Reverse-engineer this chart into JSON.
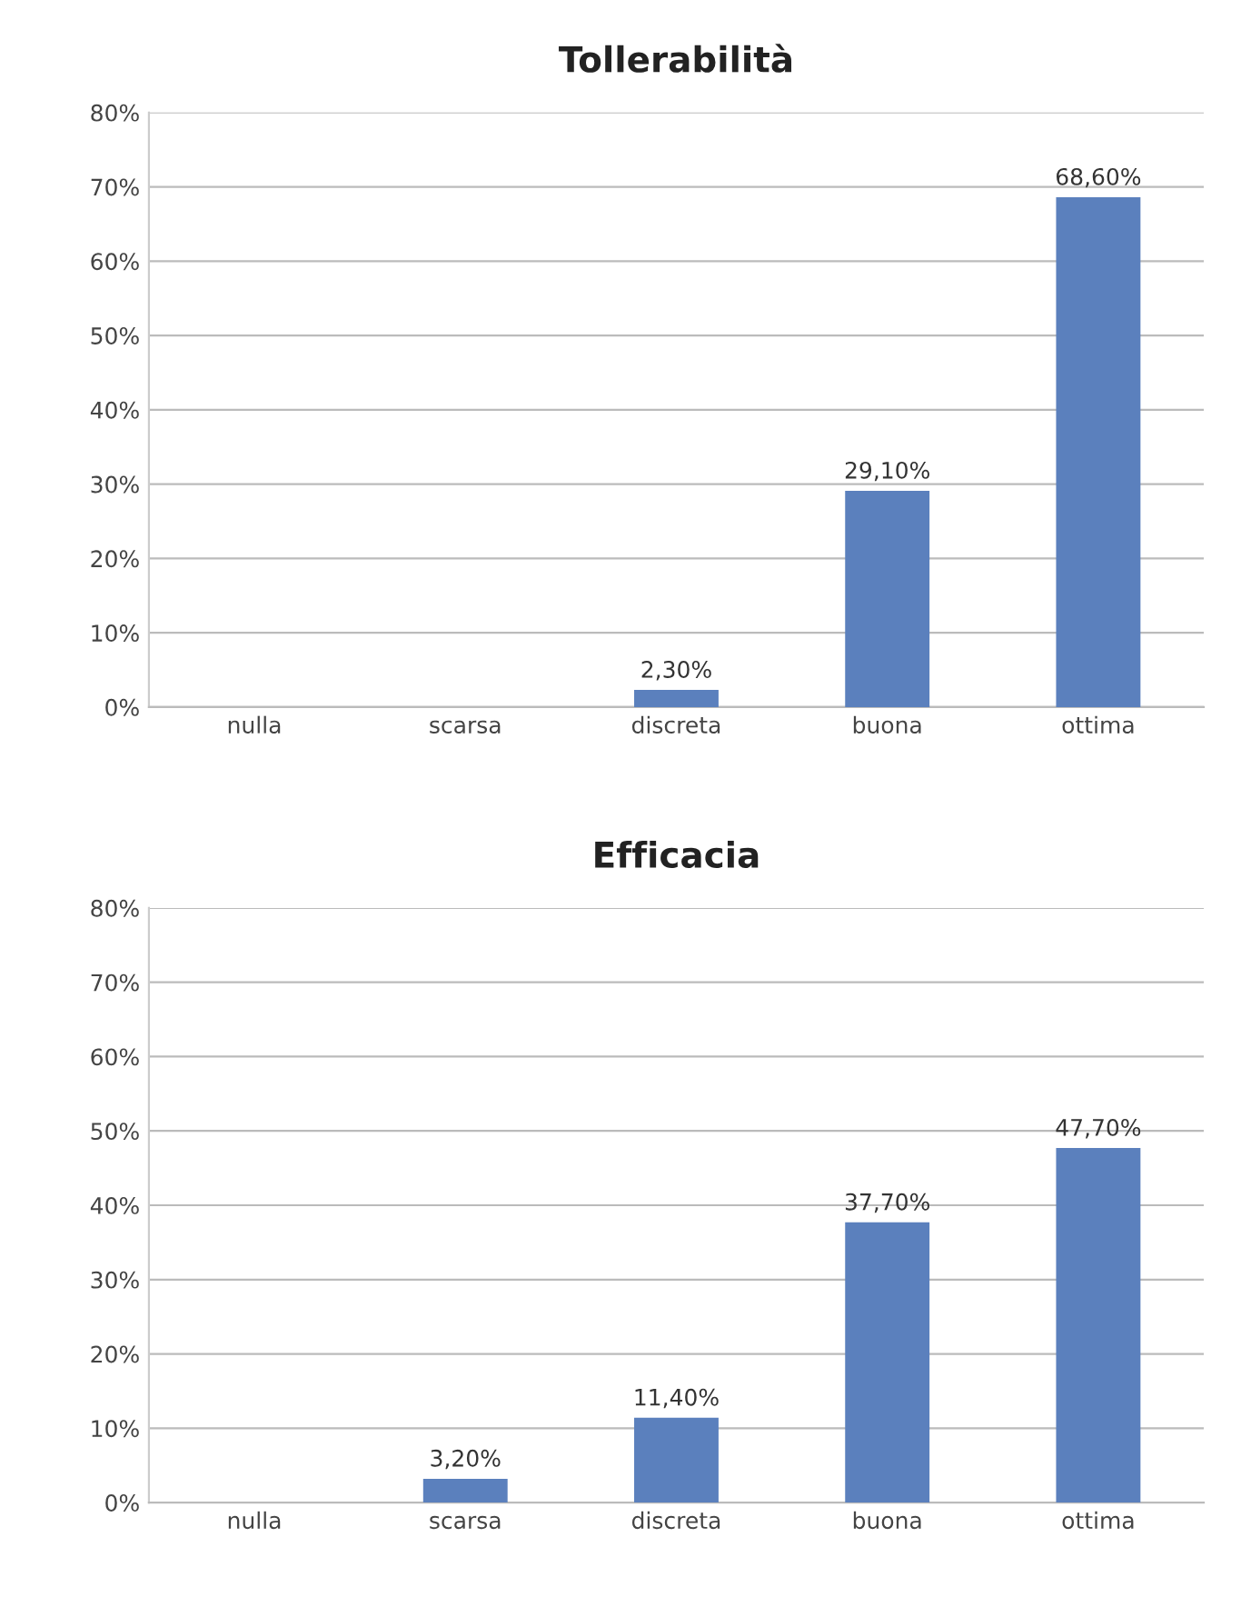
{
  "chart_data": [
    {
      "type": "bar",
      "title": "Tollerabilità",
      "categories": [
        "nulla",
        "scarsa",
        "discreta",
        "buona",
        "ottima"
      ],
      "values": [
        null,
        null,
        2.3,
        29.1,
        68.6
      ],
      "value_labels": [
        null,
        null,
        "2,30%",
        "29,10%",
        "68,60%"
      ],
      "color": "#5b80bd",
      "ylim": [
        0,
        80
      ],
      "yticks": [
        {
          "value": 0,
          "label": "0%"
        },
        {
          "value": 10,
          "label": "10%"
        },
        {
          "value": 20,
          "label": "20%"
        },
        {
          "value": 30,
          "label": "30%"
        },
        {
          "value": 40,
          "label": "40%"
        },
        {
          "value": 50,
          "label": "50%"
        },
        {
          "value": 60,
          "label": "60%"
        },
        {
          "value": 70,
          "label": "70%"
        },
        {
          "value": 80,
          "label": "80%"
        }
      ],
      "grid": "y"
    },
    {
      "type": "bar",
      "title": "Efficacia",
      "categories": [
        "nulla",
        "scarsa",
        "discreta",
        "buona",
        "ottima"
      ],
      "values": [
        null,
        3.2,
        11.4,
        37.7,
        47.7
      ],
      "value_labels": [
        null,
        "3,20%",
        "11,40%",
        "37,70%",
        "47,70%"
      ],
      "color": "#5b80bd",
      "ylim": [
        0,
        80
      ],
      "yticks": [
        {
          "value": 0,
          "label": "0%"
        },
        {
          "value": 10,
          "label": "10%"
        },
        {
          "value": 20,
          "label": "20%"
        },
        {
          "value": 30,
          "label": "30%"
        },
        {
          "value": 40,
          "label": "40%"
        },
        {
          "value": 50,
          "label": "50%"
        },
        {
          "value": 60,
          "label": "60%"
        },
        {
          "value": 70,
          "label": "70%"
        },
        {
          "value": 80,
          "label": "80%"
        }
      ],
      "grid": "y"
    }
  ]
}
